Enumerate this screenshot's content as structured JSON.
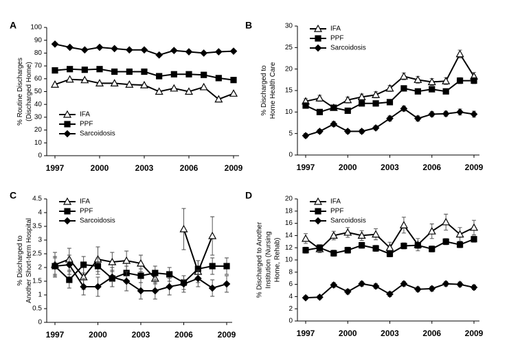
{
  "chart_data": [
    {
      "type": "line",
      "panel_label": "A",
      "ylabel": [
        "% Routine Discharges",
        "(Discharged Home)"
      ],
      "x": [
        1997,
        1998,
        1999,
        2000,
        2001,
        2002,
        2003,
        2004,
        2005,
        2006,
        2007,
        2008,
        2009
      ],
      "xlim": [
        1997,
        2009
      ],
      "xticks": [
        1997,
        2000,
        2003,
        2006,
        2009
      ],
      "ylim": [
        0,
        100
      ],
      "yticks": [
        0,
        10,
        20,
        30,
        40,
        50,
        60,
        70,
        80,
        90,
        100
      ],
      "legend": "lower left",
      "series": [
        {
          "name": "IFA",
          "color": "#000000",
          "marker": "triangle-open",
          "values": [
            55.5,
            59.5,
            59,
            56.5,
            56.5,
            55.5,
            55,
            50,
            52.5,
            50,
            53.5,
            44,
            48.5
          ]
        },
        {
          "name": "PPF",
          "color": "#000000",
          "marker": "square",
          "values": [
            66.5,
            67.5,
            67,
            67.5,
            65.5,
            65.5,
            65.5,
            62,
            63.5,
            63.5,
            63,
            60.5,
            59
          ]
        },
        {
          "name": "Sarcoidosis",
          "color": "#000000",
          "marker": "diamond",
          "values": [
            87,
            84.5,
            82.5,
            84.5,
            83.5,
            82.5,
            82.5,
            78.5,
            82,
            81,
            80,
            81,
            81.5
          ]
        }
      ]
    },
    {
      "type": "line",
      "panel_label": "B",
      "ylabel": [
        "% Discharged to",
        "Home Health Care"
      ],
      "x": [
        1997,
        1998,
        1999,
        2000,
        2001,
        2002,
        2003,
        2004,
        2005,
        2006,
        2007,
        2008,
        2009
      ],
      "xlim": [
        1997,
        2009
      ],
      "xticks": [
        1997,
        2000,
        2003,
        2006,
        2009
      ],
      "ylim": [
        0,
        30
      ],
      "yticks": [
        0,
        5,
        10,
        15,
        20,
        25,
        30
      ],
      "legend": "upper left",
      "series": [
        {
          "name": "IFA",
          "color": "#000000",
          "marker": "triangle-open",
          "values": [
            12.5,
            13.2,
            11,
            12.8,
            13.5,
            14,
            15.5,
            18.3,
            17.5,
            17,
            17.2,
            23.5,
            18.3
          ],
          "errors": [
            0.6,
            0.7,
            0.6,
            0.7,
            0.7,
            0.7,
            0.7,
            0.8,
            0.8,
            0.8,
            0.8,
            0.9,
            0.9
          ]
        },
        {
          "name": "PPF",
          "color": "#000000",
          "marker": "square",
          "values": [
            11.5,
            10,
            11,
            10.3,
            12,
            12,
            12.3,
            15.5,
            14.8,
            15.3,
            14.8,
            17.3,
            17.3
          ],
          "errors": [
            0.5,
            0.5,
            0.5,
            0.5,
            0.5,
            0.5,
            0.5,
            0.6,
            0.6,
            0.6,
            0.6,
            0.7,
            0.7
          ]
        },
        {
          "name": "Sarcoidosis",
          "color": "#000000",
          "marker": "diamond",
          "values": [
            4.5,
            5.5,
            7.2,
            5.5,
            5.5,
            6.3,
            8.5,
            10.8,
            8.5,
            9.5,
            9.6,
            10,
            9.5
          ],
          "errors": [
            0.5,
            0.5,
            0.6,
            0.5,
            0.5,
            0.5,
            0.6,
            0.6,
            0.6,
            0.6,
            0.6,
            0.7,
            0.7
          ]
        }
      ]
    },
    {
      "type": "line",
      "panel_label": "C",
      "ylabel": [
        "% Discharged to",
        "Another Short-term Hospital"
      ],
      "x": [
        1997,
        1998,
        1999,
        2000,
        2001,
        2002,
        2003,
        2004,
        2005,
        2006,
        2007,
        2008,
        2009
      ],
      "xlim": [
        1997,
        2009
      ],
      "xticks": [
        1997,
        2000,
        2003,
        2006,
        2009
      ],
      "ylim": [
        0,
        4.5
      ],
      "yticks": [
        0,
        0.5,
        1,
        1.5,
        2,
        2.5,
        3,
        3.5,
        4,
        4.5
      ],
      "legend": "upper left",
      "series": [
        {
          "name": "IFA",
          "color": "#000000",
          "marker": "triangle-open",
          "values": [
            2.1,
            2.3,
            1.65,
            2.3,
            2.2,
            2.25,
            2.15,
            1.6,
            null,
            3.4,
            1.85,
            3.15,
            null
          ],
          "errors": [
            0.45,
            0.4,
            0.45,
            0.45,
            0.35,
            0.35,
            0.3,
            0.2,
            null,
            0.75,
            0.4,
            0.7,
            null
          ]
        },
        {
          "name": "PPF",
          "color": "#000000",
          "marker": "square",
          "values": [
            2.05,
            1.55,
            2.1,
            2.05,
            1.6,
            1.8,
            1.7,
            1.8,
            1.75,
            1.45,
            1.95,
            2.05,
            2.05
          ],
          "errors": [
            0.3,
            0.3,
            0.3,
            0.3,
            0.3,
            0.25,
            0.25,
            0.25,
            0.25,
            0.25,
            0.3,
            0.3,
            0.3
          ]
        },
        {
          "name": "Sarcoidosis",
          "color": "#000000",
          "marker": "diamond",
          "values": [
            2.05,
            2.1,
            1.3,
            1.3,
            1.65,
            1.5,
            1.15,
            1.15,
            1.3,
            1.4,
            1.6,
            1.25,
            1.4
          ],
          "errors": [
            0.35,
            0.35,
            0.3,
            0.35,
            0.35,
            0.35,
            0.3,
            0.3,
            0.3,
            0.3,
            0.3,
            0.3,
            0.3
          ]
        }
      ]
    },
    {
      "type": "line",
      "panel_label": "D",
      "ylabel": [
        "% Discharged to Another",
        "Institution (Nursing",
        "Home, Rehab)"
      ],
      "x": [
        1997,
        1998,
        1999,
        2000,
        2001,
        2002,
        2003,
        2004,
        2005,
        2006,
        2007,
        2008,
        2009
      ],
      "xlim": [
        1997,
        2009
      ],
      "xticks": [
        1997,
        2000,
        2003,
        2006,
        2009
      ],
      "ylim": [
        0,
        20
      ],
      "yticks": [
        0,
        2,
        4,
        6,
        8,
        10,
        12,
        14,
        16,
        18,
        20
      ],
      "legend": "upper left",
      "series": [
        {
          "name": "IFA",
          "color": "#000000",
          "marker": "triangle-open",
          "values": [
            13.5,
            11.8,
            14,
            14.5,
            14,
            14.2,
            12,
            15.7,
            12.5,
            14.7,
            16.2,
            14.2,
            15.3
          ],
          "errors": [
            0.8,
            0.6,
            0.7,
            0.8,
            0.8,
            0.9,
            0.9,
            1.3,
            1,
            1.2,
            1.3,
            1.1,
            1.2
          ]
        },
        {
          "name": "PPF",
          "color": "#000000",
          "marker": "square",
          "values": [
            11.6,
            12,
            11.1,
            11.6,
            12.4,
            11.9,
            11,
            12.3,
            12.4,
            11.8,
            13,
            12.5,
            13.4
          ],
          "errors": [
            0.5,
            0.5,
            0.5,
            0.5,
            0.5,
            0.5,
            0.5,
            0.5,
            0.5,
            0.5,
            0.5,
            0.5,
            0.5
          ]
        },
        {
          "name": "Sarcoidosis",
          "color": "#000000",
          "marker": "diamond",
          "values": [
            3.8,
            3.9,
            5.9,
            4.8,
            6.1,
            5.7,
            4.4,
            6.1,
            5.2,
            5.3,
            6.1,
            6,
            5.5
          ],
          "errors": [
            0.3,
            0.3,
            0.4,
            0.4,
            0.4,
            0.4,
            0.4,
            0.4,
            0.4,
            0.4,
            0.4,
            0.4,
            0.4
          ]
        }
      ]
    }
  ]
}
